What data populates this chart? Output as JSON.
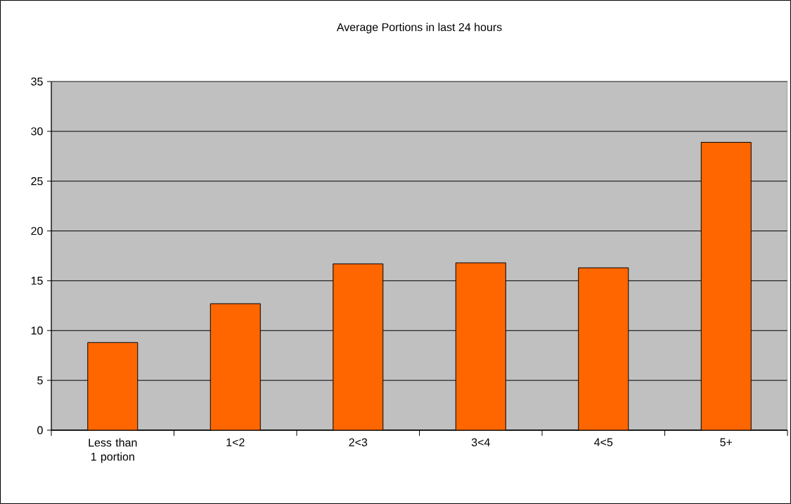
{
  "chart_data": {
    "type": "bar",
    "title": "Average Portions in last 24 hours",
    "categories": [
      "Less than 1 portion",
      "1<2",
      "2<3",
      "3<4",
      "4<5",
      "5+"
    ],
    "values": [
      8.8,
      12.7,
      16.7,
      16.8,
      16.3,
      28.9
    ],
    "color": "#ff6600",
    "ylim": [
      0,
      35
    ],
    "yticks": [
      0,
      5,
      10,
      15,
      20,
      25,
      30,
      35
    ],
    "grid": "y"
  }
}
